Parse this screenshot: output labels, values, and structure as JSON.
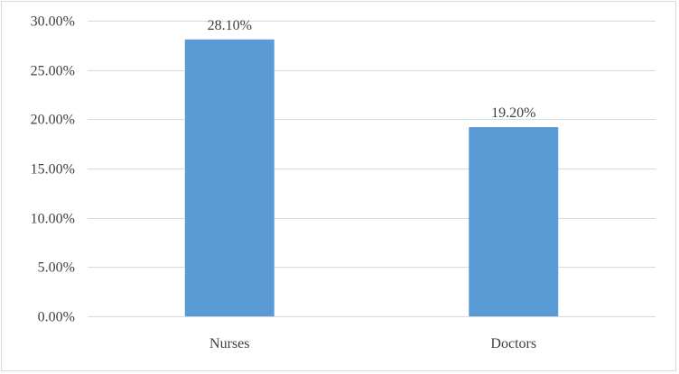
{
  "chart_data": {
    "type": "bar",
    "title": "",
    "xlabel": "",
    "ylabel": "",
    "categories": [
      "Nurses",
      "Doctors"
    ],
    "values": [
      28.1,
      19.2
    ],
    "data_labels": [
      "28.10%",
      "19.20%"
    ],
    "ylim": [
      0,
      30
    ],
    "yticks": [
      0,
      5,
      10,
      15,
      20,
      25,
      30
    ],
    "ytick_labels": [
      "0.00%",
      "5.00%",
      "10.00%",
      "15.00%",
      "20.00%",
      "25.00%",
      "30.00%"
    ],
    "grid": true,
    "legend": "none",
    "colors": {
      "bar": "#5b9bd5",
      "grid": "#d9d9d9",
      "text": "#404040"
    }
  }
}
